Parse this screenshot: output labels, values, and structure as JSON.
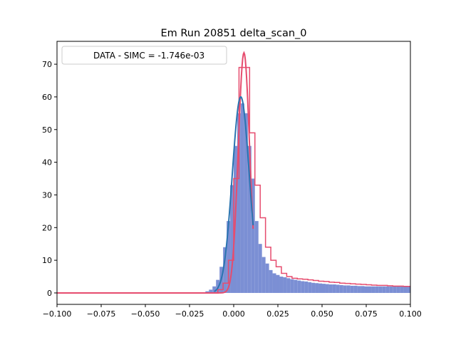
{
  "chart_data": {
    "type": "bar",
    "title": "Em Run 20851 delta_scan_0",
    "xlabel": "",
    "ylabel": "",
    "xlim": [
      -0.1,
      0.1
    ],
    "ylim": [
      -3.5,
      77
    ],
    "xticks": [
      -0.1,
      -0.075,
      -0.05,
      -0.025,
      0.0,
      0.025,
      0.05,
      0.075,
      0.1
    ],
    "xtick_labels": [
      "−0.100",
      "−0.075",
      "−0.050",
      "−0.025",
      "0.000",
      "0.025",
      "0.050",
      "0.075",
      "0.100"
    ],
    "yticks": [
      0,
      10,
      20,
      30,
      40,
      50,
      60,
      70
    ],
    "ytick_labels": [
      "0",
      "10",
      "20",
      "30",
      "40",
      "50",
      "60",
      "70"
    ],
    "grid": false,
    "legend": {
      "position": "top-left",
      "entries": [
        "DATA - SIMC = -1.746e-03"
      ]
    },
    "colors": {
      "data_fill": "#7b8fd4",
      "data_fit": "#2a74b0",
      "simc": "#e64c6e",
      "axis": "#000000"
    },
    "series": [
      {
        "role": "data-histogram",
        "bin_width": 0.002,
        "x": [
          -0.1,
          -0.098,
          -0.096,
          -0.094,
          -0.092,
          -0.09,
          -0.088,
          -0.086,
          -0.084,
          -0.082,
          -0.08,
          -0.078,
          -0.076,
          -0.074,
          -0.072,
          -0.07,
          -0.068,
          -0.066,
          -0.064,
          -0.062,
          -0.06,
          -0.058,
          -0.056,
          -0.054,
          -0.052,
          -0.05,
          -0.048,
          -0.046,
          -0.044,
          -0.042,
          -0.04,
          -0.038,
          -0.036,
          -0.034,
          -0.032,
          -0.03,
          -0.028,
          -0.026,
          -0.024,
          -0.022,
          -0.02,
          -0.018,
          -0.016,
          -0.014,
          -0.012,
          -0.01,
          -0.008,
          -0.006,
          -0.004,
          -0.002,
          0.0,
          0.002,
          0.004,
          0.006,
          0.008,
          0.01,
          0.012,
          0.014,
          0.016,
          0.018,
          0.02,
          0.022,
          0.024,
          0.026,
          0.028,
          0.03,
          0.032,
          0.034,
          0.036,
          0.038,
          0.04,
          0.042,
          0.044,
          0.046,
          0.048,
          0.05,
          0.052,
          0.054,
          0.056,
          0.058,
          0.06,
          0.062,
          0.064,
          0.066,
          0.068,
          0.07,
          0.072,
          0.074,
          0.076,
          0.078,
          0.08,
          0.082,
          0.084,
          0.086,
          0.088,
          0.09,
          0.092,
          0.094,
          0.096,
          0.098
        ],
        "values": [
          0,
          0,
          0,
          0,
          0,
          0,
          0,
          0,
          0,
          0,
          0,
          0,
          0,
          0,
          0,
          0,
          0,
          0,
          0,
          0,
          0,
          0,
          0,
          0,
          0,
          0,
          0,
          0,
          0,
          0,
          0,
          0,
          0,
          0,
          0,
          0,
          0,
          0,
          0,
          0,
          0,
          0.2,
          0.5,
          1,
          2,
          4,
          8,
          14,
          22,
          33,
          45,
          55,
          58,
          55,
          45,
          35,
          22,
          15,
          11,
          9,
          7,
          6,
          5.5,
          5,
          4.8,
          4.5,
          4.2,
          4,
          3.8,
          3.6,
          3.5,
          3.3,
          3.1,
          3,
          2.9,
          2.8,
          2.7,
          2.6,
          2.6,
          2.5,
          2.4,
          2.3,
          2.3,
          2.2,
          2.2,
          2.1,
          2.1,
          2,
          2,
          2,
          2,
          2,
          2,
          2,
          2,
          2,
          2,
          2,
          2,
          2
        ]
      },
      {
        "role": "simc-histogram",
        "bin_width": 0.003,
        "x": [
          -0.009,
          -0.006,
          -0.003,
          0.0,
          0.003,
          0.006,
          0.009,
          0.012,
          0.015,
          0.018,
          0.021,
          0.024,
          0.027,
          0.03,
          0.033,
          0.036,
          0.039,
          0.042,
          0.045,
          0.048,
          0.051,
          0.054,
          0.057,
          0.06,
          0.063,
          0.066,
          0.069,
          0.072,
          0.075,
          0.078,
          0.081,
          0.084,
          0.087,
          0.09,
          0.093,
          0.096,
          0.099
        ],
        "values": [
          1,
          3,
          10,
          35,
          69,
          69,
          49,
          33,
          23,
          14,
          10,
          8,
          6,
          5,
          4.5,
          4.3,
          4.2,
          4,
          3.8,
          3.6,
          3.5,
          3.3,
          3.2,
          3,
          2.9,
          2.8,
          2.7,
          2.6,
          2.5,
          2.4,
          2.3,
          2.3,
          2.2,
          2.1,
          2.1,
          2,
          2
        ]
      },
      {
        "role": "data-fit",
        "curve": "gaussian",
        "amplitude": 60,
        "mean": 0.004,
        "sigma": 0.0048,
        "x_range": [
          -0.011,
          0.011
        ]
      },
      {
        "role": "simc-fit",
        "curve": "gaussian",
        "amplitude": 73.5,
        "mean": 0.0058,
        "sigma": 0.0032,
        "x_range": [
          -0.1,
          0.011
        ]
      }
    ]
  }
}
